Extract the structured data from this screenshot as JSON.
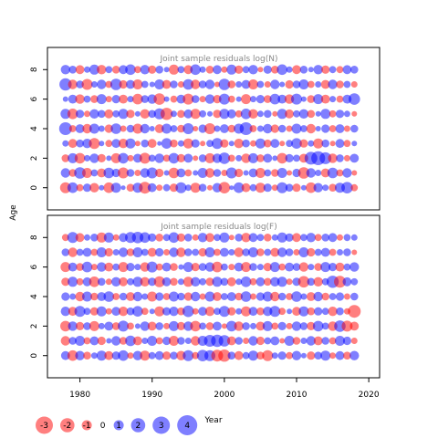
{
  "chart_data": {
    "type": "bubble",
    "title": "",
    "xlabel": "Year",
    "ylabel": "Age",
    "xlim": [
      1975.5,
      2021.5
    ],
    "ylim": [
      -1.5,
      9.5
    ],
    "xticks": [
      1980,
      1990,
      2000,
      2010,
      2020
    ],
    "yticks": [
      0,
      2,
      4,
      6,
      8
    ],
    "ages": [
      0,
      1,
      2,
      3,
      4,
      5,
      6,
      7,
      8
    ],
    "colors": {
      "positive": "#0000ff",
      "negative": "#ff0000",
      "alpha": 0.5
    },
    "panels": [
      {
        "name": "top",
        "title": "Joint sample residuals log(N)",
        "year_start": 1978,
        "year_end": 2018
      },
      {
        "name": "bottom",
        "title": "Joint sample residuals log(F)",
        "year_start": 1978,
        "year_end": 2018
      }
    ],
    "residuals_logN": [
      [
        -1.2,
        1.1,
        -0.5,
        0.7,
        -0.9,
        0.3,
        -1.1,
        1.0,
        0.2,
        -0.6,
        1.0,
        -1.4,
        0.8,
        -0.4,
        0.5,
        -0.7,
        1.2,
        0.4,
        -1.0,
        0.6,
        -0.3,
        0.9,
        -1.3,
        0.2,
        1.1,
        -0.8,
        0.5,
        -1.0,
        0.7,
        -0.4,
        1.2,
        0.6,
        -0.7,
        0.3,
        -1.1,
        0.9,
        0.4,
        -0.6,
        1.0,
        1.3,
        -0.5
      ],
      [
        0.9,
        -0.6,
        1.3,
        -1.0,
        0.5,
        -0.8,
        1.1,
        0.7,
        -1.2,
        0.6,
        -0.4,
        0.9,
        1.2,
        -0.7,
        0.3,
        -1.1,
        0.8,
        -0.5,
        0.3,
        1.0,
        -0.9,
        0.6,
        -0.4,
        1.2,
        -0.7,
        0.3,
        0.8,
        -1.0,
        0.5,
        -0.6,
        1.0,
        -0.3,
        0.7,
        -1.3,
        0.9,
        0.4,
        -0.8,
        1.1,
        -0.5,
        0.9,
        -0.3
      ],
      [
        -0.6,
        1.0,
        -1.1,
        0.4,
        0.9,
        -0.7,
        0.3,
        -1.0,
        1.1,
        -0.4,
        0.8,
        -1.2,
        0.5,
        0.9,
        -0.5,
        1.1,
        -0.7,
        0.8,
        -0.3,
        0.6,
        -1.0,
        0.9,
        1.3,
        -0.5,
        0.4,
        -0.9,
        1.0,
        -0.6,
        0.8,
        0.3,
        -1.1,
        0.7,
        0.5,
        -0.8,
        1.6,
        1.9,
        1.4,
        -0.9,
        0.6,
        -0.4,
        0.8
      ],
      [
        0.4,
        -0.8,
        0.6,
        0.9,
        -1.2,
        0.3,
        -0.5,
        0.8,
        -0.9,
        1.0,
        -0.3,
        0.6,
        -0.8,
        0.2,
        1.1,
        -0.6,
        0.4,
        -1.0,
        0.7,
        -0.3,
        0.5,
        1.2,
        -0.7,
        0.3,
        -0.9,
        0.6,
        -0.4,
        1.0,
        -0.6,
        0.8,
        -0.3,
        0.5,
        1.1,
        -0.7,
        0.4,
        -1.0,
        0.6,
        -0.3,
        0.8,
        -0.5,
        0.3
      ],
      [
        1.6,
        -0.5,
        0.8,
        -0.9,
        1.0,
        0.4,
        -0.7,
        1.1,
        -0.4,
        0.6,
        -1.0,
        0.9,
        0.3,
        -0.8,
        1.0,
        0.5,
        -0.6,
        1.2,
        -0.3,
        0.7,
        -1.2,
        0.4,
        0.8,
        -0.6,
        1.0,
        1.6,
        -0.5,
        0.4,
        0.9,
        -0.7,
        0.6,
        -0.4,
        1.0,
        0.5,
        -0.9,
        0.3,
        0.7,
        -0.5,
        0.8,
        -0.4,
        0.6
      ],
      [
        1.0,
        -1.1,
        0.7,
        -0.4,
        0.9,
        0.6,
        -0.8,
        0.5,
        1.0,
        -0.7,
        0.3,
        -0.9,
        0.6,
        1.2,
        -1.5,
        0.4,
        -0.6,
        0.8,
        -1.0,
        0.5,
        0.3,
        -0.7,
        1.0,
        0.8,
        -0.5,
        1.1,
        -0.9,
        0.4,
        0.6,
        -0.3,
        1.0,
        -0.8,
        0.5,
        0.9,
        -0.6,
        0.3,
        1.0,
        -0.5,
        0.7,
        0.4,
        -0.3
      ],
      [
        0.3,
        0.8,
        -0.9,
        0.5,
        -0.6,
        1.0,
        -0.4,
        0.7,
        -0.8,
        0.4,
        -1.1,
        0.6,
        0.9,
        -1.3,
        0.3,
        -0.5,
        0.8,
        -1.2,
        0.6,
        -0.4,
        0.9,
        -0.7,
        1.2,
        -0.5,
        0.3,
        -1.0,
        0.4,
        0.7,
        -0.6,
        1.1,
        0.8,
        -0.9,
        1.2,
        0.3,
        -0.6,
        1.0,
        -0.8,
        0.4,
        -0.5,
        0.8,
        1.3
      ],
      [
        1.5,
        -0.9,
        0.6,
        -1.2,
        0.4,
        0.9,
        -0.5,
        1.3,
        -0.7,
        0.8,
        -1.0,
        0.5,
        0.3,
        1.0,
        -0.8,
        0.6,
        -0.4,
        1.1,
        -0.9,
        0.6,
        0.9,
        -0.3,
        1.3,
        -0.6,
        0.4,
        0.8,
        -1.0,
        0.5,
        -0.4,
        0.9,
        0.3,
        -0.7,
        0.6,
        1.0,
        -0.5,
        0.4,
        -0.8,
        0.9,
        -0.6,
        0.5,
        -0.4
      ],
      [
        0.9,
        0.6,
        -0.8,
        0.4,
        1.0,
        -0.9,
        0.5,
        -0.6,
        0.8,
        1.1,
        -0.5,
        0.9,
        -0.7,
        0.6,
        0.3,
        -1.0,
        0.5,
        -0.8,
        1.1,
        0.4,
        -0.6,
        0.8,
        -0.4,
        1.0,
        -0.7,
        0.5,
        0.9,
        -0.3,
        0.7,
        -0.6,
        1.1,
        0.4,
        -0.8,
        0.6,
        0.3,
        0.9,
        -0.7,
        0.5,
        -0.5,
        0.8,
        0.6
      ]
    ],
    "residuals_logF": [
      [
        0.8,
        -1.1,
        0.9,
        -0.6,
        0.4,
        1.0,
        -0.8,
        0.7,
        1.1,
        -0.4,
        0.9,
        -1.0,
        0.5,
        0.8,
        -0.7,
        0.6,
        -0.9,
        1.2,
        -0.5,
        1.3,
        1.2,
        -1.4,
        -1.5,
        0.6,
        -0.8,
        0.5,
        1.0,
        -0.6,
        -1.2,
        0.4,
        0.7,
        -0.5,
        0.9,
        0.3,
        -0.7,
        0.6,
        1.0,
        -0.4,
        0.8,
        -0.6,
        0.9
      ],
      [
        -0.9,
        0.6,
        1.0,
        -0.5,
        0.8,
        -0.7,
        0.3,
        0.9,
        -0.6,
        1.1,
        -0.8,
        0.4,
        1.0,
        -0.5,
        0.7,
        -1.0,
        0.6,
        0.4,
        -0.9,
        1.0,
        1.4,
        1.5,
        1.3,
        -0.8,
        0.6,
        -0.4,
        0.9,
        -0.7,
        0.5,
        0.8,
        -0.3,
        1.0,
        -0.6,
        0.4,
        0.9,
        -0.8,
        0.6,
        -0.5,
        1.0,
        0.7,
        -0.4
      ],
      [
        -1.1,
        0.9,
        -0.7,
        0.6,
        -1.0,
        0.4,
        0.8,
        -0.6,
        1.2,
        -0.5,
        0.3,
        0.9,
        -0.8,
        0.6,
        -0.4,
        1.0,
        -0.7,
        0.9,
        -1.1,
        0.5,
        -0.6,
        0.8,
        -0.3,
        1.1,
        -0.9,
        0.6,
        0.4,
        -0.8,
        1.0,
        -0.5,
        0.7,
        -0.4,
        0.9,
        0.6,
        -0.7,
        1.1,
        0.5,
        -0.9,
        1.3,
        -1.2,
        -0.8
      ],
      [
        0.9,
        -0.8,
        1.2,
        0.5,
        -0.7,
        1.0,
        -0.4,
        0.8,
        -0.9,
        0.6,
        1.1,
        -0.5,
        0.3,
        -1.0,
        0.7,
        0.9,
        -0.6,
        1.3,
        -0.4,
        0.8,
        -0.9,
        0.5,
        1.2,
        -0.7,
        0.4,
        -1.0,
        0.8,
        -0.6,
        0.9,
        1.2,
        -0.5,
        0.3,
        -0.8,
        1.0,
        -0.6,
        0.7,
        0.5,
        -0.9,
        0.6,
        -0.4,
        -1.6
      ],
      [
        0.7,
        0.4,
        -0.9,
        1.0,
        -0.6,
        0.8,
        1.1,
        -0.5,
        0.6,
        -0.8,
        0.9,
        0.4,
        -1.0,
        0.7,
        -0.5,
        1.0,
        0.6,
        -0.7,
        0.9,
        -0.4,
        1.0,
        -0.8,
        0.5,
        0.8,
        -0.6,
        1.1,
        -0.4,
        0.7,
        1.0,
        -0.9,
        0.6,
        -0.5,
        1.1,
        0.4,
        -0.8,
        0.9,
        -0.6,
        0.5,
        0.7,
        -0.4,
        0.6
      ],
      [
        -0.7,
        1.0,
        -0.5,
        0.8,
        -1.1,
        0.6,
        -0.4,
        0.9,
        -0.8,
        0.5,
        1.0,
        -0.9,
        0.7,
        -1.2,
        0.8,
        -0.6,
        0.4,
        -1.0,
        0.9,
        0.5,
        -0.7,
        1.0,
        0.6,
        -0.8,
        0.4,
        1.1,
        -0.5,
        0.8,
        -0.6,
        0.9,
        1.0,
        -0.4,
        0.7,
        -1.3,
        0.6,
        -0.9,
        0.5,
        1.5,
        -1.4,
        0.8,
        0.5
      ],
      [
        -1.0,
        0.8,
        -0.6,
        1.1,
        -0.4,
        0.9,
        -0.8,
        0.5,
        -1.0,
        0.7,
        0.4,
        -0.9,
        1.2,
        -0.5,
        0.8,
        -0.6,
        0.3,
        1.0,
        -0.7,
        0.6,
        0.9,
        -1.1,
        0.5,
        -0.4,
        0.8,
        -1.0,
        0.6,
        0.4,
        -0.7,
        1.0,
        -0.5,
        0.8,
        0.6,
        -0.9,
        0.4,
        -0.6,
        1.0,
        0.7,
        -0.8,
        0.5,
        0.9
      ],
      [
        0.6,
        -0.9,
        0.5,
        0.8,
        -0.5,
        1.0,
        -0.7,
        0.4,
        0.9,
        -0.6,
        1.0,
        0.5,
        -0.8,
        0.7,
        -0.4,
        0.9,
        -0.9,
        0.6,
        0.5,
        -0.7,
        1.0,
        -0.5,
        0.8,
        0.4,
        -0.9,
        0.6,
        1.0,
        -0.6,
        0.5,
        -0.8,
        0.9,
        0.6,
        -0.4,
        1.0,
        -0.7,
        0.5,
        0.8,
        -0.5,
        0.4,
        0.6,
        -0.3
      ],
      [
        -0.5,
        1.2,
        -0.8,
        0.4,
        0.6,
        -1.0,
        1.0,
        -0.4,
        0.8,
        1.2,
        1.3,
        1.1,
        0.7,
        -0.6,
        0.5,
        1.1,
        -0.7,
        0.6,
        -0.4,
        0.9,
        -0.8,
        0.5,
        1.0,
        -0.3,
        0.6,
        -0.9,
        0.8,
        0.5,
        -0.6,
        0.4,
        1.0,
        0.7,
        -0.8,
        0.5,
        0.9,
        -0.5,
        0.6,
        0.8,
        -0.4,
        0.5,
        0.4
      ]
    ],
    "legend": {
      "placement": "bottom-left",
      "entries": [
        "-3",
        "-2",
        "-1",
        "0",
        "1",
        "2",
        "3",
        "4"
      ],
      "values": [
        -3,
        -2,
        -1,
        0,
        1,
        2,
        3,
        4
      ]
    }
  }
}
